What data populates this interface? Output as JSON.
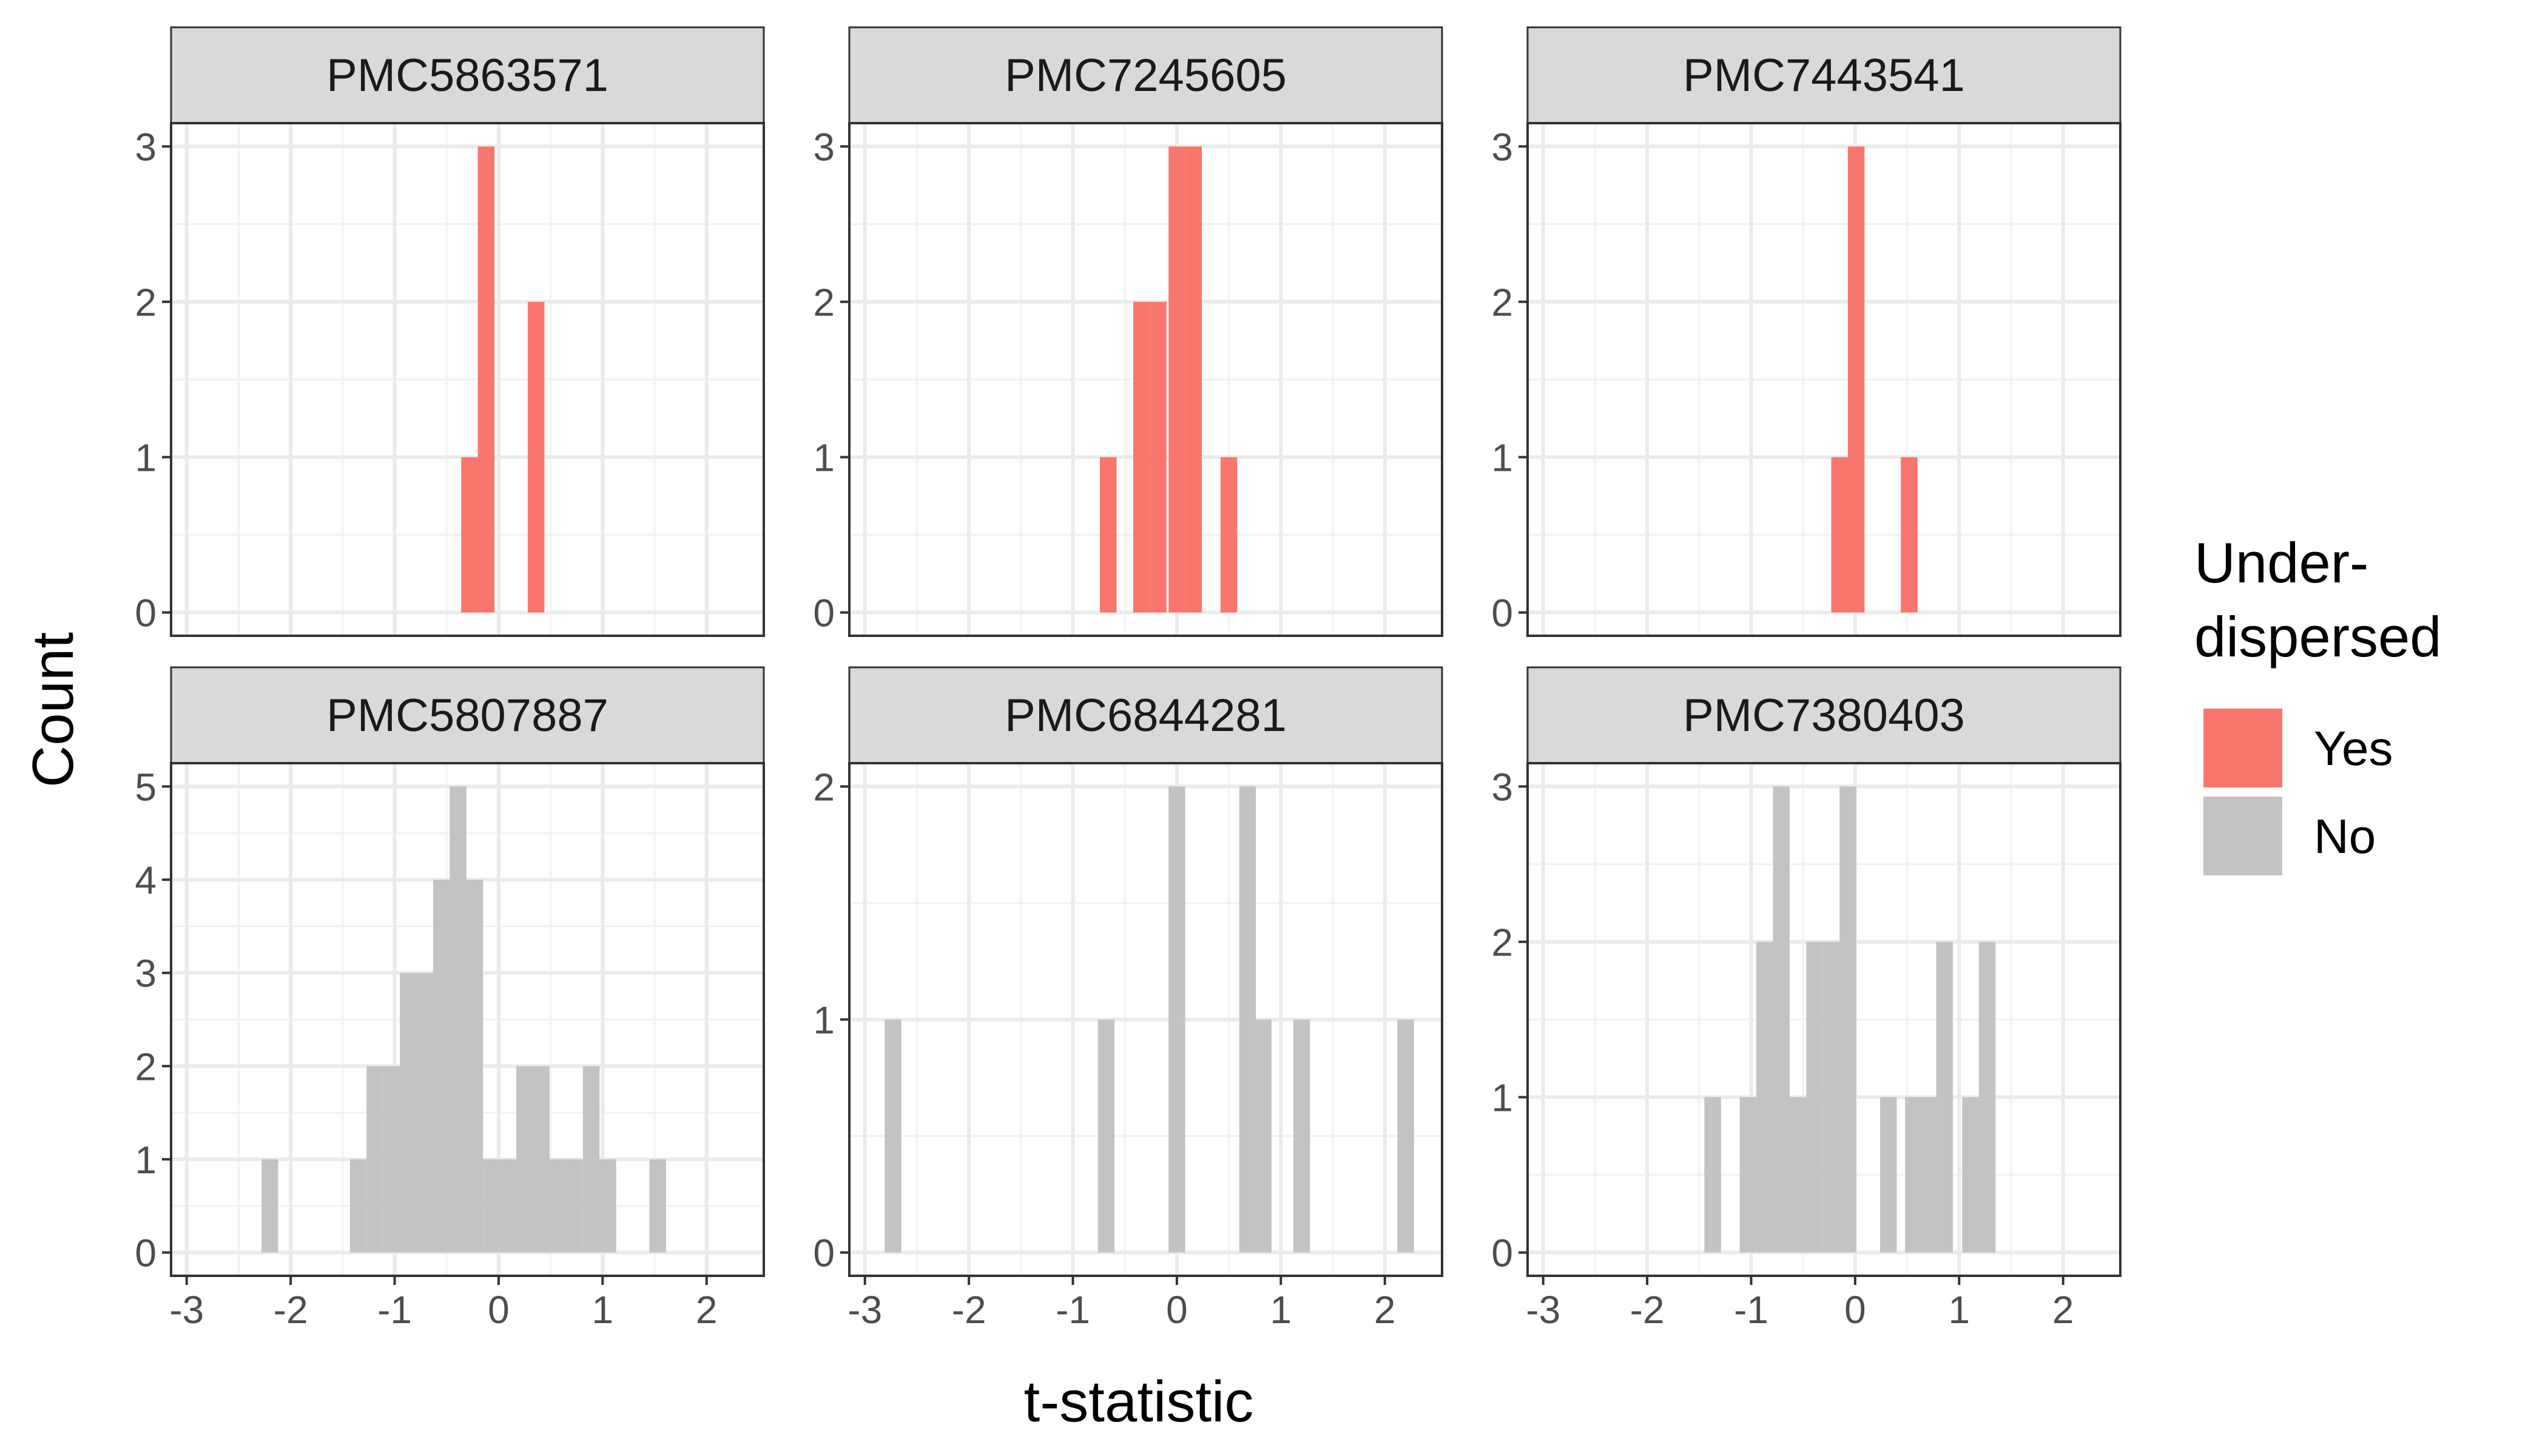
{
  "chart_data": {
    "type": "histogram",
    "xlabel": "t-statistic",
    "ylabel": "Count",
    "xlim": [
      -3.15,
      2.55
    ],
    "x_ticks": [
      -3,
      -2,
      -1,
      0,
      1,
      2
    ],
    "x_tick_labels": [
      "-3",
      "-2",
      "-1",
      "0",
      "1",
      "2"
    ],
    "bin_width": 0.16,
    "legend": {
      "title_lines": [
        "Under-",
        "dispersed"
      ],
      "placement": "right",
      "items": [
        {
          "label": "Yes",
          "color": "#F8766D"
        },
        {
          "label": "No",
          "color": "#C3C3C3"
        }
      ]
    },
    "grid": true,
    "panels": [
      {
        "id": "PMC5863571",
        "row": 0,
        "col": 0,
        "underdispersed": "Yes",
        "ylim": [
          -0.15,
          3.15
        ],
        "y_ticks": [
          0,
          1,
          2,
          3
        ],
        "y_tick_labels": [
          "0",
          "1",
          "2",
          "3"
        ],
        "bins": [
          [
            -0.28,
            1
          ],
          [
            -0.12,
            3
          ],
          [
            0.36,
            2
          ]
        ]
      },
      {
        "id": "PMC7245605",
        "row": 0,
        "col": 1,
        "underdispersed": "Yes",
        "ylim": [
          -0.15,
          3.15
        ],
        "y_ticks": [
          0,
          1,
          2,
          3
        ],
        "y_tick_labels": [
          "0",
          "1",
          "2",
          "3"
        ],
        "bins": [
          [
            -0.66,
            1
          ],
          [
            -0.34,
            2
          ],
          [
            -0.18,
            2
          ],
          [
            0.0,
            3
          ],
          [
            0.16,
            3
          ],
          [
            0.5,
            1
          ]
        ]
      },
      {
        "id": "PMC7443541",
        "row": 0,
        "col": 2,
        "underdispersed": "Yes",
        "ylim": [
          -0.15,
          3.15
        ],
        "y_ticks": [
          0,
          1,
          2,
          3
        ],
        "y_tick_labels": [
          "0",
          "1",
          "2",
          "3"
        ],
        "bins": [
          [
            -0.15,
            1
          ],
          [
            0.01,
            3
          ],
          [
            0.52,
            1
          ]
        ]
      },
      {
        "id": "PMC5807887",
        "row": 1,
        "col": 0,
        "underdispersed": "No",
        "ylim": [
          -0.25,
          5.25
        ],
        "y_ticks": [
          0,
          1,
          2,
          3,
          4,
          5
        ],
        "y_tick_labels": [
          "0",
          "1",
          "2",
          "3",
          "4",
          "5"
        ],
        "bins": [
          [
            -2.2,
            1
          ],
          [
            -1.35,
            1
          ],
          [
            -1.19,
            2
          ],
          [
            -1.03,
            2
          ],
          [
            -0.87,
            3
          ],
          [
            -0.71,
            3
          ],
          [
            -0.55,
            4
          ],
          [
            -0.39,
            5
          ],
          [
            -0.23,
            4
          ],
          [
            -0.07,
            1
          ],
          [
            0.09,
            1
          ],
          [
            0.25,
            2
          ],
          [
            0.41,
            2
          ],
          [
            0.57,
            1
          ],
          [
            0.73,
            1
          ],
          [
            0.89,
            2
          ],
          [
            1.05,
            1
          ],
          [
            1.53,
            1
          ]
        ]
      },
      {
        "id": "PMC6844281",
        "row": 1,
        "col": 1,
        "underdispersed": "No",
        "ylim": [
          -0.1,
          2.1
        ],
        "y_ticks": [
          0,
          1,
          2
        ],
        "y_tick_labels": [
          "0",
          "1",
          "2"
        ],
        "bins": [
          [
            -2.73,
            1
          ],
          [
            -0.68,
            1
          ],
          [
            0.0,
            2
          ],
          [
            0.68,
            2
          ],
          [
            0.83,
            1
          ],
          [
            1.2,
            1
          ],
          [
            2.2,
            1
          ]
        ]
      },
      {
        "id": "PMC7380403",
        "row": 1,
        "col": 2,
        "underdispersed": "No",
        "ylim": [
          -0.15,
          3.15
        ],
        "y_ticks": [
          0,
          1,
          2,
          3
        ],
        "y_tick_labels": [
          "0",
          "1",
          "2",
          "3"
        ],
        "bins": [
          [
            -1.37,
            1
          ],
          [
            -1.03,
            1
          ],
          [
            -0.87,
            2
          ],
          [
            -0.71,
            3
          ],
          [
            -0.55,
            1
          ],
          [
            -0.39,
            2
          ],
          [
            -0.23,
            2
          ],
          [
            -0.07,
            3
          ],
          [
            0.32,
            1
          ],
          [
            0.56,
            1
          ],
          [
            0.72,
            1
          ],
          [
            0.86,
            2
          ],
          [
            1.11,
            1
          ],
          [
            1.27,
            2
          ]
        ]
      }
    ]
  }
}
